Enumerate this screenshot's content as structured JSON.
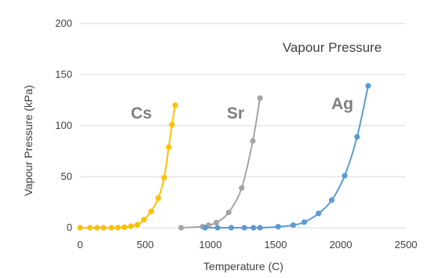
{
  "chart_data": {
    "type": "scatter",
    "title": "Vapour Pressure",
    "xlabel": "Temperature (C)",
    "ylabel": "Vapour Pressure (kPa)",
    "xlim": [
      0,
      2500
    ],
    "ylim": [
      0,
      200
    ],
    "xticks": [
      "0",
      "500",
      "1000",
      "1500",
      "2000",
      "2500"
    ],
    "yticks": [
      "0",
      "50",
      "100",
      "150",
      "200"
    ],
    "grid": "horizontal",
    "lines": "smoothed with markers",
    "series": [
      {
        "name": "Cs",
        "color": "#ffc000",
        "x": [
          0,
          75,
          130,
          180,
          240,
          290,
          340,
          390,
          440,
          490,
          545,
          600,
          645,
          680,
          705,
          730
        ],
        "y": [
          0,
          0,
          0,
          0,
          0,
          0.1,
          0.5,
          1.5,
          3,
          8,
          16,
          29,
          49,
          79,
          101,
          120
        ]
      },
      {
        "name": "Sr",
        "color": "#a5a5a5",
        "x": [
          775,
          940,
          985,
          1045,
          1140,
          1240,
          1325,
          1380
        ],
        "y": [
          0,
          1,
          2.5,
          5,
          15,
          39,
          85,
          127
        ]
      },
      {
        "name": "Ag",
        "color": "#5b9bd5",
        "x": [
          960,
          1055,
          1160,
          1260,
          1330,
          1380,
          1520,
          1635,
          1720,
          1830,
          1930,
          2030,
          2125,
          2210
        ],
        "y": [
          0,
          0,
          0,
          0,
          0,
          0,
          1,
          2.5,
          5.5,
          14,
          27,
          51,
          89,
          139
        ]
      }
    ]
  }
}
